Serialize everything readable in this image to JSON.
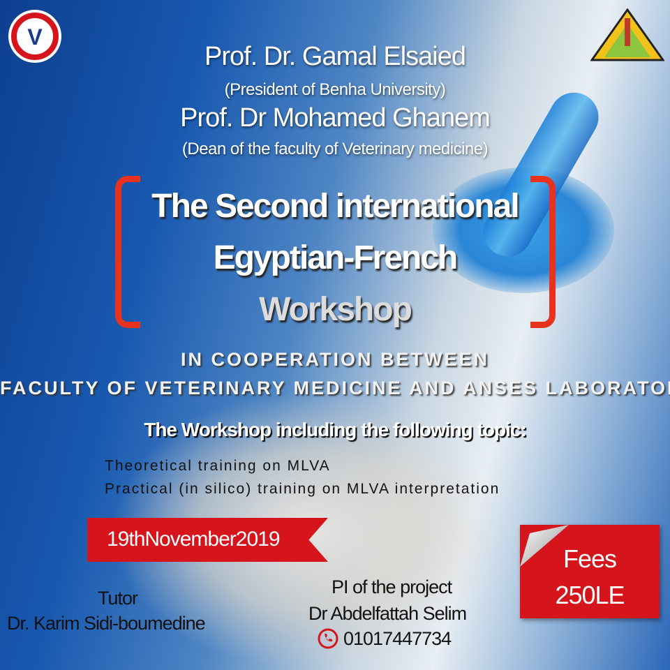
{
  "logos": {
    "left": "Faculty of Veterinary Medicine, Benha University",
    "left_letter": "V",
    "right": "Benha University"
  },
  "header": {
    "name1": "Prof. Dr. Gamal Elsaied",
    "role1": "(President of Benha University)",
    "name2": "Prof. Dr Mohamed Ghanem",
    "role2": "(Dean of the faculty of Veterinary medicine)"
  },
  "title": {
    "line1": "The Second international",
    "line2": "Egyptian-French",
    "line3": "Workshop"
  },
  "cooperation": {
    "line1": "IN COOPERATION BETWEEN",
    "line2": "FACULTY OF VETERINARY MEDICINE AND ANSES LABORATORY"
  },
  "topics": {
    "heading": "The Workshop including the following topic:",
    "items": [
      "Theoretical training on MLVA",
      "Practical (in silico) training on MLVA interpretation"
    ]
  },
  "date": "19thNovember2019",
  "fees": {
    "label": "Fees",
    "amount": "250LE"
  },
  "tutor": {
    "label": "Tutor",
    "name": "Dr. Karim Sidi-boumedine"
  },
  "pi": {
    "label": "PI of the project",
    "name": "Dr Abdelfattah Selim",
    "phone": "01017447734",
    "phone_icon": "phone-icon"
  },
  "colors": {
    "accent_red": "#d6141c",
    "bracket": "#e8321e",
    "blue": "#1859b0"
  }
}
